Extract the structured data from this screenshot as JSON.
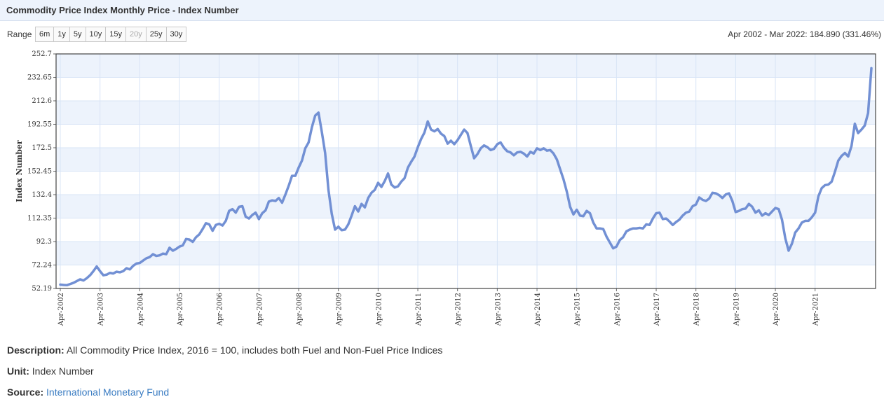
{
  "header": {
    "title": "Commodity Price Index Monthly Price - Index Number"
  },
  "range": {
    "label": "Range",
    "buttons": [
      {
        "label": "6m",
        "enabled": true
      },
      {
        "label": "1y",
        "enabled": true
      },
      {
        "label": "5y",
        "enabled": true
      },
      {
        "label": "10y",
        "enabled": true
      },
      {
        "label": "15y",
        "enabled": true
      },
      {
        "label": "20y",
        "enabled": false
      },
      {
        "label": "25y",
        "enabled": true
      },
      {
        "label": "30y",
        "enabled": true
      }
    ],
    "summary": "Apr 2002 - Mar 2022: 184.890 (331.46%)"
  },
  "footer": {
    "description_label": "Description:",
    "description": "All Commodity Price Index, 2016 = 100, includes both Fuel and Non-Fuel Price Indices",
    "unit_label": "Unit:",
    "unit": "Index Number",
    "source_label": "Source:",
    "source": "International Monetary Fund"
  },
  "colors": {
    "line": "#7290d4",
    "band": "#edf3fc",
    "grid": "#d8e4f6",
    "frame": "#444444"
  },
  "chart_data": {
    "type": "line",
    "title": "Commodity Price Index Monthly Price - Index Number",
    "xlabel": "",
    "ylabel": "Index Number",
    "ylim": [
      52.19,
      252.7
    ],
    "yticks": [
      52.19,
      72.24,
      92.3,
      112.35,
      132.4,
      152.45,
      172.5,
      192.55,
      212.6,
      232.65,
      252.7
    ],
    "ytick_labels": [
      "52.19",
      "72.24",
      "92.3",
      "112.35",
      "132.4",
      "152.45",
      "172.5",
      "192.55",
      "212.6",
      "232.65",
      "252.7"
    ],
    "xticks": [
      0,
      12,
      24,
      36,
      48,
      60,
      72,
      84,
      96,
      108,
      120,
      132,
      144,
      156,
      168,
      180,
      192,
      204,
      216,
      228
    ],
    "xtick_labels": [
      "Apr-2002",
      "Apr-2003",
      "Apr-2004",
      "Apr-2005",
      "Apr-2006",
      "Apr-2007",
      "Apr-2008",
      "Apr-2009",
      "Apr-2010",
      "Apr-2011",
      "Apr-2012",
      "Apr-2013",
      "Apr-2014",
      "Apr-2015",
      "Apr-2016",
      "Apr-2017",
      "Apr-2018",
      "Apr-2019",
      "Apr-2020",
      "Apr-2021"
    ],
    "grid": true,
    "legend": "none",
    "series": [
      {
        "name": "Commodity Price Index",
        "x_start": "Apr-2002",
        "x_end": "Mar-2022",
        "values": [
          55.5,
          55.2,
          55.0,
          56.0,
          57.0,
          58.5,
          60.0,
          59.0,
          61.0,
          63.5,
          67.0,
          71.0,
          67.0,
          63.5,
          64.0,
          65.5,
          65.0,
          66.5,
          66.0,
          67.0,
          69.5,
          68.5,
          71.5,
          73.5,
          74.0,
          76.0,
          78.0,
          79.0,
          81.5,
          80.0,
          80.5,
          82.0,
          81.5,
          87.0,
          84.5,
          86.0,
          88.0,
          89.0,
          94.5,
          94.0,
          92.0,
          96.0,
          98.5,
          103.0,
          108.0,
          107.0,
          101.5,
          106.5,
          107.5,
          106.0,
          110.0,
          118.5,
          120.0,
          117.0,
          122.0,
          122.5,
          113.5,
          112.0,
          115.0,
          117.0,
          111.5,
          116.5,
          119.0,
          126.5,
          127.5,
          127.0,
          129.5,
          125.5,
          132.5,
          140.0,
          148.5,
          148.5,
          155.5,
          161.5,
          172.0,
          177.0,
          190.0,
          200.0,
          202.5,
          186.0,
          168.0,
          136.5,
          116.0,
          102.5,
          105.0,
          102.0,
          102.5,
          107.0,
          114.5,
          122.5,
          118.0,
          124.5,
          121.5,
          129.5,
          134.0,
          136.5,
          142.5,
          139.0,
          144.0,
          150.5,
          141.0,
          138.5,
          139.5,
          143.5,
          146.5,
          155.5,
          160.5,
          165.0,
          173.0,
          180.0,
          185.5,
          195.0,
          188.0,
          186.5,
          188.5,
          184.5,
          182.5,
          176.0,
          178.5,
          175.5,
          179.0,
          183.5,
          188.0,
          185.0,
          174.0,
          163.5,
          167.0,
          172.0,
          174.5,
          173.0,
          170.5,
          171.5,
          175.5,
          177.0,
          172.5,
          169.5,
          168.5,
          166.0,
          168.5,
          169.0,
          167.5,
          165.0,
          169.0,
          167.5,
          172.0,
          170.5,
          172.0,
          170.0,
          170.5,
          167.5,
          162.5,
          154.0,
          145.5,
          135.0,
          122.0,
          115.5,
          119.5,
          114.5,
          114.0,
          118.5,
          116.5,
          108.5,
          103.5,
          103.5,
          103.0,
          96.5,
          91.5,
          86.5,
          88.0,
          93.5,
          96.0,
          101.0,
          102.5,
          103.5,
          103.5,
          104.0,
          103.5,
          107.0,
          106.5,
          112.0,
          116.5,
          117.0,
          111.5,
          112.0,
          109.5,
          106.5,
          109.0,
          111.0,
          114.5,
          117.0,
          118.0,
          122.5,
          124.0,
          130.0,
          128.0,
          127.0,
          129.0,
          134.0,
          133.5,
          132.0,
          129.5,
          132.5,
          133.5,
          127.0,
          117.5,
          118.5,
          120.0,
          120.5,
          124.5,
          122.0,
          117.0,
          119.0,
          114.5,
          116.5,
          115.0,
          118.0,
          121.0,
          120.0,
          111.0,
          95.0,
          84.5,
          90.5,
          100.0,
          103.5,
          108.5,
          110.0,
          110.0,
          113.0,
          117.0,
          131.0,
          138.0,
          140.5,
          141.0,
          143.5,
          152.0,
          161.5,
          165.5,
          168.0,
          165.0,
          174.0,
          193.0,
          185.0,
          188.0,
          191.5,
          202.0,
          240.5
        ]
      }
    ]
  }
}
